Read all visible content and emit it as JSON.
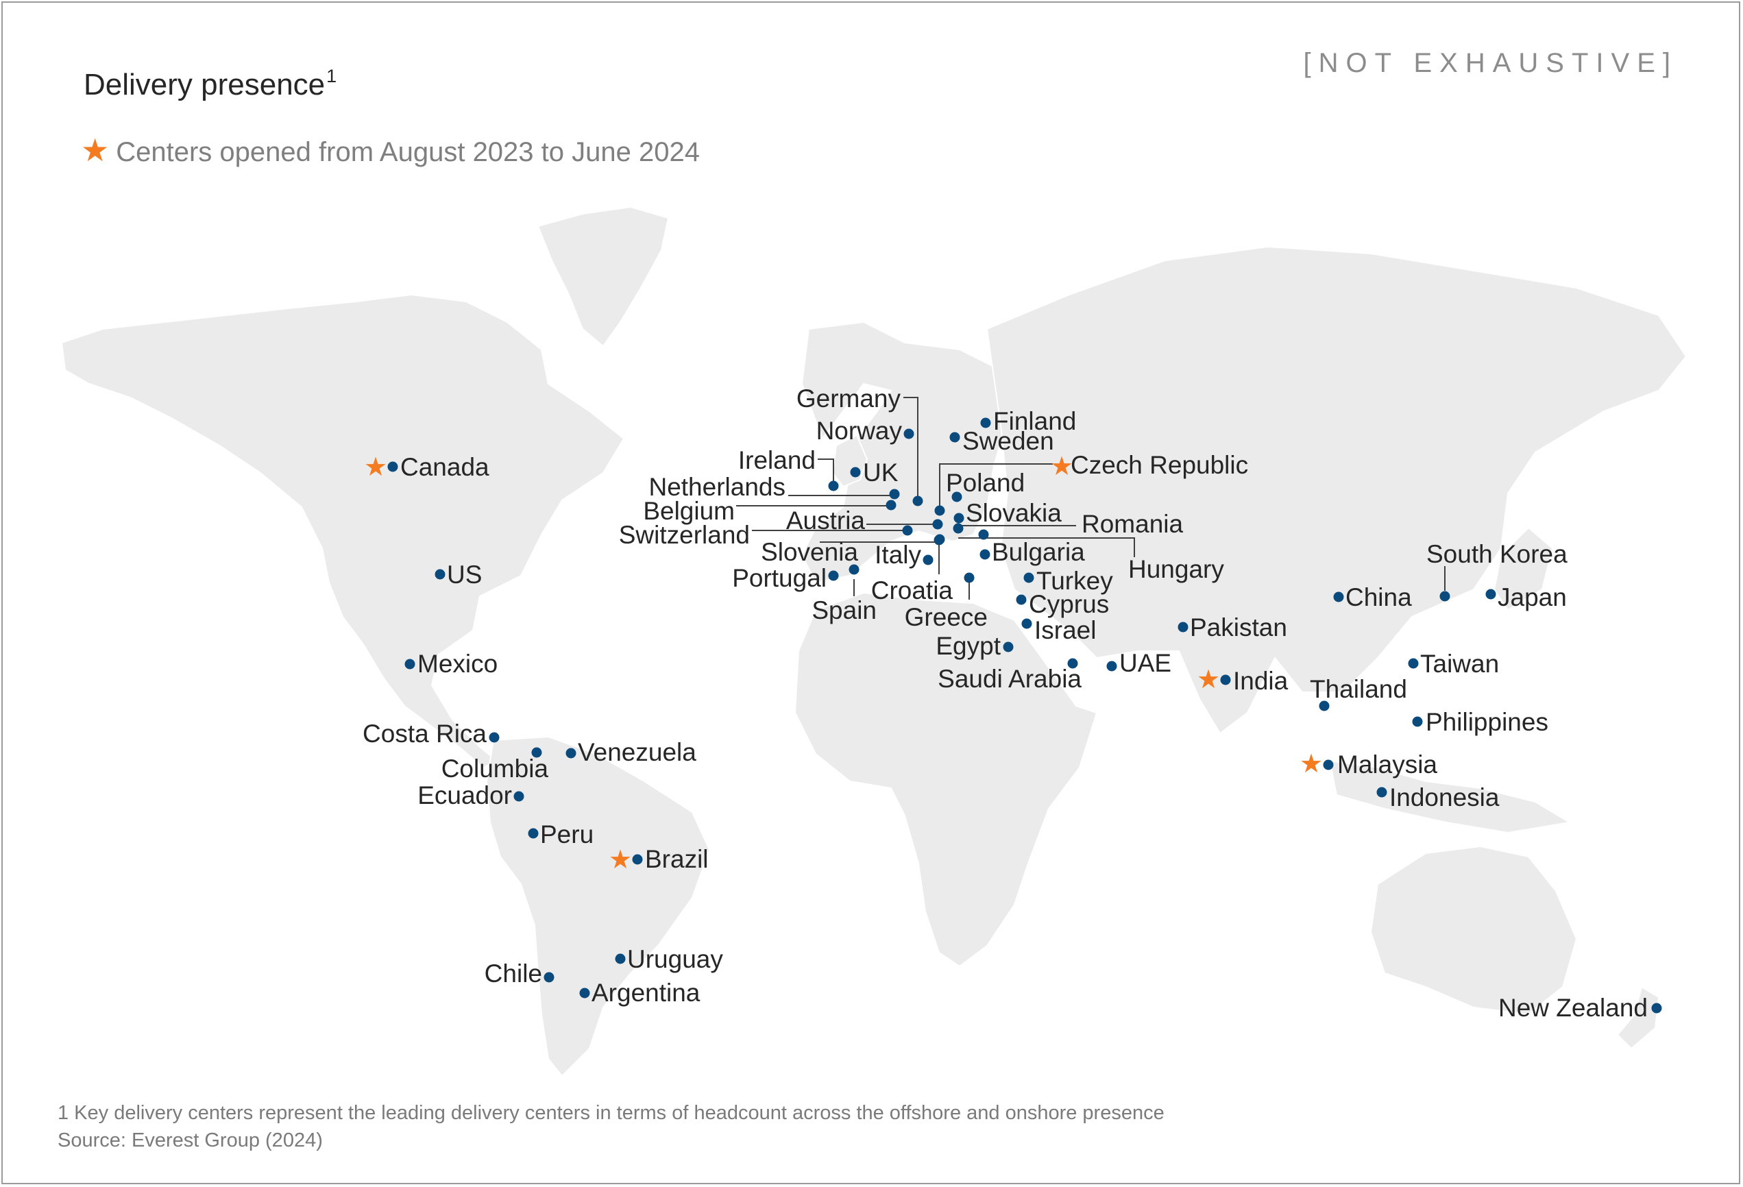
{
  "header": {
    "title": "Delivery presence",
    "title_sup": "1",
    "tag": "[NOT EXHAUSTIVE]",
    "legend": "Centers opened from August 2023 to June 2024"
  },
  "colors": {
    "land": "#ebebeb",
    "dot": "#0a4a7d",
    "star": "#f47b20",
    "leader": "#404040"
  },
  "legend_icon": "star-icon",
  "locations": [
    {
      "name": "Canada",
      "new": true
    },
    {
      "name": "US",
      "new": false
    },
    {
      "name": "Mexico",
      "new": false
    },
    {
      "name": "Costa Rica",
      "new": false
    },
    {
      "name": "Columbia",
      "new": false
    },
    {
      "name": "Venezuela",
      "new": false
    },
    {
      "name": "Ecuador",
      "new": false
    },
    {
      "name": "Peru",
      "new": false
    },
    {
      "name": "Brazil",
      "new": true
    },
    {
      "name": "Chile",
      "new": false
    },
    {
      "name": "Uruguay",
      "new": false
    },
    {
      "name": "Argentina",
      "new": false
    },
    {
      "name": "Germany",
      "new": false
    },
    {
      "name": "Norway",
      "new": false
    },
    {
      "name": "Finland",
      "new": false
    },
    {
      "name": "Sweden",
      "new": false
    },
    {
      "name": "Ireland",
      "new": false
    },
    {
      "name": "UK",
      "new": false
    },
    {
      "name": "Czech Republic",
      "new": true
    },
    {
      "name": "Netherlands",
      "new": false
    },
    {
      "name": "Poland",
      "new": false
    },
    {
      "name": "Belgium",
      "new": false
    },
    {
      "name": "Slovakia",
      "new": false
    },
    {
      "name": "Austria",
      "new": false
    },
    {
      "name": "Romania",
      "new": false
    },
    {
      "name": "Switzerland",
      "new": false
    },
    {
      "name": "Slovenia",
      "new": false
    },
    {
      "name": "Italy",
      "new": false
    },
    {
      "name": "Bulgaria",
      "new": false
    },
    {
      "name": "Hungary",
      "new": false
    },
    {
      "name": "Portugal",
      "new": false
    },
    {
      "name": "Croatia",
      "new": false
    },
    {
      "name": "Turkey",
      "new": false
    },
    {
      "name": "Spain",
      "new": false
    },
    {
      "name": "Greece",
      "new": false
    },
    {
      "name": "Cyprus",
      "new": false
    },
    {
      "name": "Israel",
      "new": false
    },
    {
      "name": "Egypt",
      "new": false
    },
    {
      "name": "Saudi Arabia",
      "new": false
    },
    {
      "name": "UAE",
      "new": false
    },
    {
      "name": "Pakistan",
      "new": false
    },
    {
      "name": "India",
      "new": true
    },
    {
      "name": "China",
      "new": false
    },
    {
      "name": "South Korea",
      "new": false
    },
    {
      "name": "Japan",
      "new": false
    },
    {
      "name": "Taiwan",
      "new": false
    },
    {
      "name": "Thailand",
      "new": false
    },
    {
      "name": "Philippines",
      "new": false
    },
    {
      "name": "Malaysia",
      "new": true
    },
    {
      "name": "Indonesia",
      "new": false
    },
    {
      "name": "New Zealand",
      "new": false
    }
  ],
  "footnotes": {
    "note": "1 Key delivery centers represent the leading delivery centers in terms of headcount across the offshore and onshore presence",
    "source": "Source: Everest Group (2024)"
  }
}
